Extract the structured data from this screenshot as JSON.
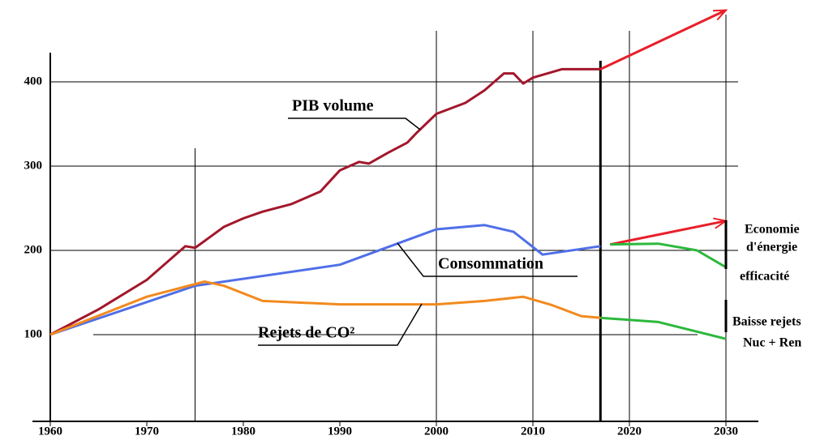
{
  "chart_data": {
    "type": "line",
    "xlim": [
      1960,
      2033
    ],
    "ylim": [
      0,
      490
    ],
    "xticks": [
      1960,
      1970,
      1980,
      1990,
      2000,
      2010,
      2020,
      2030
    ],
    "yticks": [
      100,
      200,
      300,
      400
    ],
    "xgrid": [
      1975,
      2000,
      2010,
      2017,
      2020,
      2030
    ],
    "grid": true,
    "series": [
      {
        "name": "PIB volume",
        "color": "#a3172c",
        "x": [
          1960,
          1965,
          1970,
          1974,
          1975,
          1978,
          1980,
          1982,
          1985,
          1988,
          1990,
          1992,
          1993,
          1995,
          1997,
          1998,
          2000,
          2003,
          2005,
          2007,
          2008,
          2009,
          2010,
          2013,
          2017
        ],
        "values": [
          100,
          130,
          165,
          205,
          203,
          228,
          238,
          246,
          255,
          270,
          295,
          305,
          303,
          316,
          328,
          340,
          362,
          375,
          390,
          410,
          410,
          398,
          405,
          415,
          415
        ]
      },
      {
        "color": "#e8202a",
        "arrow": true,
        "x": [
          2017,
          2030
        ],
        "values": [
          415,
          485
        ]
      },
      {
        "name": "Consommation",
        "color": "#4f6fe8",
        "x": [
          1960,
          1975,
          1990,
          2000,
          2005,
          2008,
          2011,
          2017
        ],
        "values": [
          100,
          158,
          183,
          225,
          230,
          222,
          195,
          205
        ]
      },
      {
        "color": "#e8202a",
        "arrow": true,
        "x": [
          2018,
          2030
        ],
        "values": [
          207,
          235
        ]
      },
      {
        "color": "#2db83d",
        "x": [
          2018,
          2023,
          2027,
          2030
        ],
        "values": [
          207,
          208,
          200,
          180
        ]
      },
      {
        "name": "Rejets de CO²",
        "color": "#f28a1e",
        "x": [
          1960,
          1970,
          1976,
          1978,
          1982,
          1990,
          2000,
          2005,
          2009,
          2012,
          2015,
          2017
        ],
        "values": [
          100,
          145,
          163,
          158,
          140,
          136,
          136,
          140,
          145,
          135,
          122,
          120
        ]
      },
      {
        "color": "#2db83d",
        "x": [
          2017,
          2023,
          2030
        ],
        "values": [
          120,
          115,
          95
        ]
      }
    ],
    "annotations": [
      [
        "Economie",
        "d'énergie",
        "efficacité"
      ],
      [
        "Baisse rejets",
        "Nuc + Ren"
      ]
    ]
  }
}
